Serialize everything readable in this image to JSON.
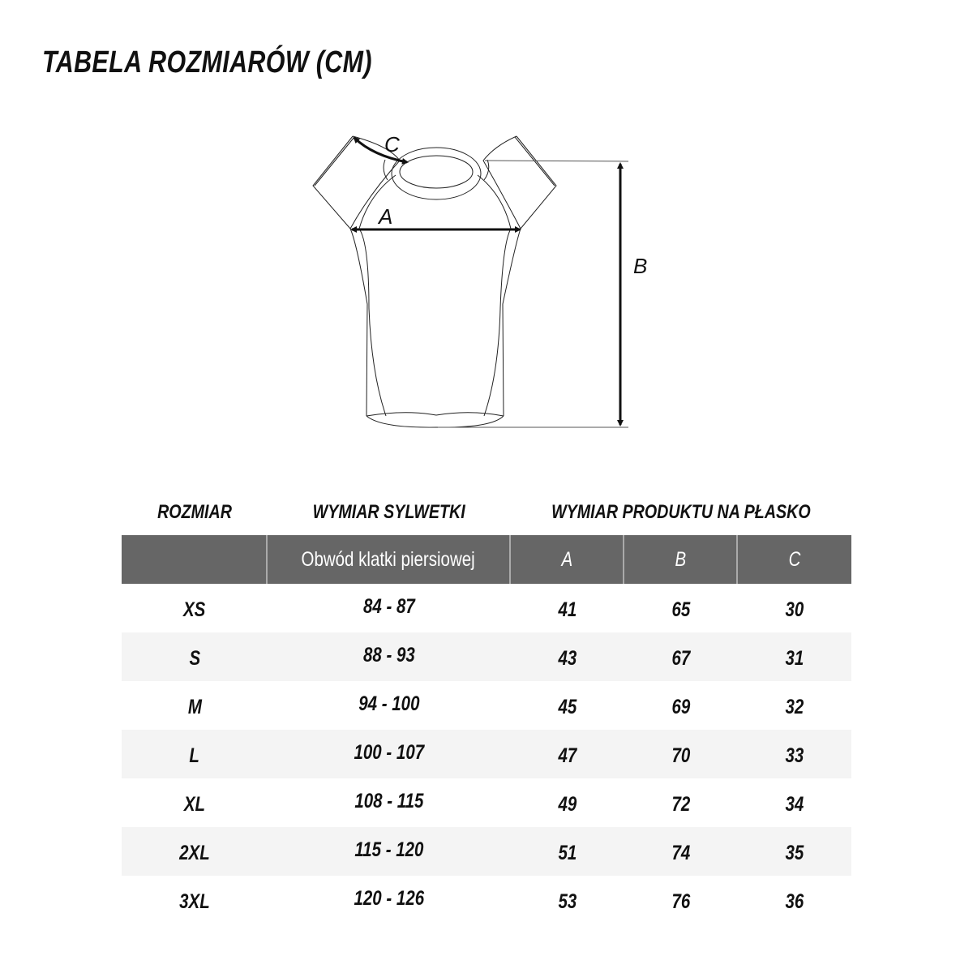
{
  "title": "TABELA ROZMIARÓW (CM)",
  "diagram": {
    "labels": {
      "a": "A",
      "b": "B",
      "c": "C"
    }
  },
  "table": {
    "group_headers": {
      "size": "ROZMIAR",
      "body": "WYMIAR SYLWETKI",
      "product": "WYMIAR PRODUKTU NA PŁASKO"
    },
    "columns": [
      "",
      "Obwód klatki piersiowej",
      "A",
      "B",
      "C"
    ],
    "header_color": "#666666",
    "rows": [
      [
        "XS",
        "84 - 87",
        "41",
        "65",
        "30"
      ],
      [
        "S",
        "88 - 93",
        "43",
        "67",
        "31"
      ],
      [
        "M",
        "94 - 100",
        "45",
        "69",
        "32"
      ],
      [
        "L",
        "100 - 107",
        "47",
        "70",
        "33"
      ],
      [
        "XL",
        "108 - 115",
        "49",
        "72",
        "34"
      ],
      [
        "2XL",
        "115 - 120",
        "51",
        "74",
        "35"
      ],
      [
        "3XL",
        "120 - 126",
        "53",
        "76",
        "36"
      ]
    ]
  }
}
